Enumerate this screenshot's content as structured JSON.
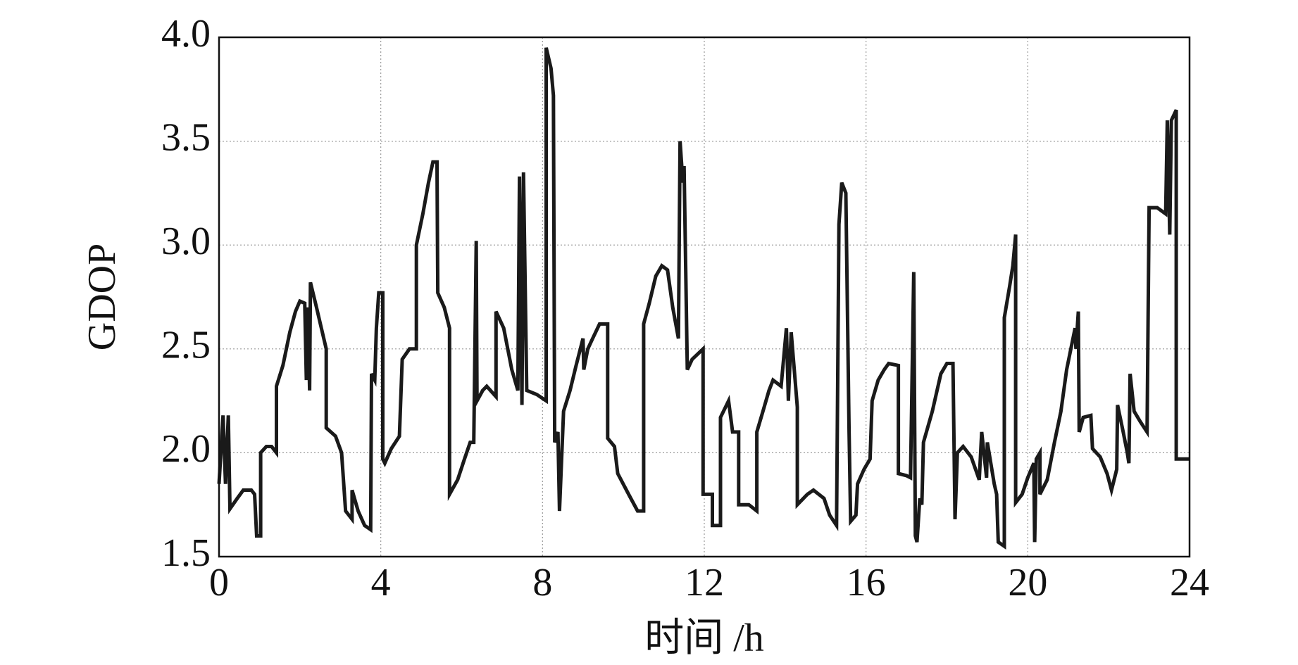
{
  "chart_data": {
    "type": "line",
    "xlabel": "时间 /h",
    "ylabel": "GDOP",
    "color": "#1a1a1a",
    "grid": true,
    "xlim": [
      0,
      24
    ],
    "xticks": [
      0,
      4,
      8,
      12,
      16,
      20,
      24
    ],
    "ylim": [
      1.5,
      4.0
    ],
    "yticks": [
      1.5,
      {
        "value": 2.0,
        "label": "2.0"
      },
      2.5,
      {
        "value": 3.0,
        "label": "3.0"
      },
      3.5,
      {
        "value": 4.0,
        "label": "4.0"
      }
    ],
    "x": [
      0,
      0.1,
      0.16,
      0.23,
      0.27,
      0.45,
      0.6,
      0.8,
      0.88,
      0.93,
      1.03,
      1.03,
      1.17,
      1.3,
      1.42,
      1.42,
      1.58,
      1.75,
      1.89,
      2.0,
      2.12,
      2.16,
      2.2,
      2.24,
      2.26,
      2.41,
      2.53,
      2.65,
      2.65,
      2.88,
      3.03,
      3.13,
      3.29,
      3.29,
      3.44,
      3.6,
      3.75,
      3.77,
      3.85,
      3.89,
      3.95,
      4.05,
      4.05,
      4.1,
      4.26,
      4.46,
      4.53,
      4.71,
      4.88,
      4.88,
      5.04,
      5.18,
      5.29,
      5.39,
      5.41,
      5.57,
      5.7,
      5.7,
      5.9,
      6.07,
      6.21,
      6.3,
      6.36,
      6.38,
      6.52,
      6.62,
      6.85,
      6.85,
      7.04,
      7.24,
      7.39,
      7.43,
      7.49,
      7.53,
      7.61,
      7.86,
      8.09,
      8.09,
      8.21,
      8.27,
      8.3,
      8.38,
      8.42,
      8.52,
      8.68,
      8.83,
      9.0,
      9.02,
      9.12,
      9.24,
      9.41,
      9.61,
      9.61,
      9.78,
      9.86,
      10.13,
      10.35,
      10.5,
      10.5,
      10.64,
      10.8,
      10.95,
      11.09,
      11.22,
      11.36,
      11.4,
      11.47,
      11.5,
      11.58,
      11.7,
      11.97,
      11.97,
      12.2,
      12.2,
      12.4,
      12.4,
      12.6,
      12.7,
      12.85,
      12.85,
      13.1,
      13.3,
      13.3,
      13.45,
      13.6,
      13.7,
      13.9,
      14.03,
      14.08,
      14.15,
      14.3,
      14.3,
      14.55,
      14.7,
      14.96,
      15.1,
      15.27,
      15.33,
      15.4,
      15.5,
      15.58,
      15.62,
      15.75,
      15.79,
      15.95,
      16.1,
      16.15,
      16.3,
      16.45,
      16.56,
      16.8,
      16.8,
      17.0,
      17.1,
      17.18,
      17.22,
      17.26,
      17.33,
      17.38,
      17.42,
      17.64,
      17.85,
      18.0,
      18.15,
      18.2,
      18.26,
      18.4,
      18.6,
      18.8,
      18.86,
      18.98,
      19.0,
      19.17,
      19.23,
      19.27,
      19.42,
      19.42,
      19.55,
      19.63,
      19.7,
      19.7,
      19.86,
      20.0,
      20.15,
      20.17,
      20.21,
      20.3,
      20.3,
      20.48,
      20.56,
      20.66,
      20.82,
      20.96,
      21.17,
      21.19,
      21.25,
      21.27,
      21.37,
      21.56,
      21.6,
      21.79,
      21.96,
      22.07,
      22.2,
      22.22,
      22.36,
      22.46,
      22.5,
      22.53,
      22.63,
      22.78,
      22.95,
      23.0,
      23.2,
      23.41,
      23.45,
      23.51,
      23.55,
      23.67,
      23.67,
      24.0
    ],
    "values": [
      1.85,
      2.18,
      1.85,
      2.18,
      1.73,
      1.78,
      1.82,
      1.82,
      1.8,
      1.6,
      1.6,
      2.0,
      2.03,
      2.03,
      2.0,
      2.32,
      2.42,
      2.58,
      2.68,
      2.73,
      2.72,
      2.35,
      2.7,
      2.3,
      2.82,
      2.7,
      2.6,
      2.5,
      2.12,
      2.08,
      2.0,
      1.72,
      1.68,
      1.82,
      1.72,
      1.65,
      1.63,
      2.38,
      2.35,
      2.6,
      2.77,
      2.77,
      1.97,
      1.95,
      2.02,
      2.08,
      2.45,
      2.5,
      2.5,
      3.0,
      3.15,
      3.3,
      3.4,
      3.4,
      2.77,
      2.7,
      2.6,
      1.8,
      1.87,
      1.97,
      2.05,
      2.05,
      3.02,
      2.25,
      2.3,
      2.32,
      2.27,
      2.68,
      2.6,
      2.4,
      2.3,
      3.33,
      2.23,
      3.35,
      2.3,
      2.28,
      2.25,
      3.95,
      3.85,
      3.72,
      2.05,
      2.1,
      1.72,
      2.2,
      2.3,
      2.42,
      2.55,
      2.4,
      2.5,
      2.55,
      2.62,
      2.62,
      2.07,
      2.03,
      1.9,
      1.8,
      1.72,
      1.72,
      2.62,
      2.72,
      2.85,
      2.9,
      2.88,
      2.7,
      2.55,
      3.5,
      3.3,
      3.38,
      2.4,
      2.45,
      2.5,
      1.8,
      1.8,
      1.65,
      1.65,
      2.17,
      2.25,
      2.1,
      2.1,
      1.75,
      1.75,
      1.72,
      2.1,
      2.2,
      2.3,
      2.35,
      2.32,
      2.6,
      2.25,
      2.58,
      2.22,
      1.75,
      1.8,
      1.82,
      1.78,
      1.7,
      1.65,
      3.1,
      3.3,
      3.25,
      2.1,
      1.67,
      1.7,
      1.85,
      1.92,
      1.97,
      2.25,
      2.35,
      2.4,
      2.43,
      2.42,
      1.9,
      1.89,
      1.88,
      2.87,
      1.6,
      1.57,
      1.78,
      1.75,
      2.05,
      2.2,
      2.38,
      2.43,
      2.43,
      1.68,
      2.0,
      2.03,
      1.98,
      1.87,
      2.1,
      1.88,
      2.05,
      1.85,
      1.8,
      1.57,
      1.55,
      2.65,
      2.8,
      2.9,
      3.05,
      1.76,
      1.8,
      1.88,
      1.95,
      1.57,
      1.97,
      2.0,
      1.8,
      1.87,
      1.95,
      2.05,
      2.2,
      2.4,
      2.6,
      2.5,
      2.68,
      2.1,
      2.17,
      2.18,
      2.02,
      1.98,
      1.9,
      1.82,
      1.92,
      2.23,
      2.1,
      2.0,
      1.95,
      2.38,
      2.2,
      2.15,
      2.1,
      3.18,
      3.18,
      3.15,
      3.6,
      3.05,
      3.6,
      3.65,
      1.97,
      1.97
    ]
  }
}
